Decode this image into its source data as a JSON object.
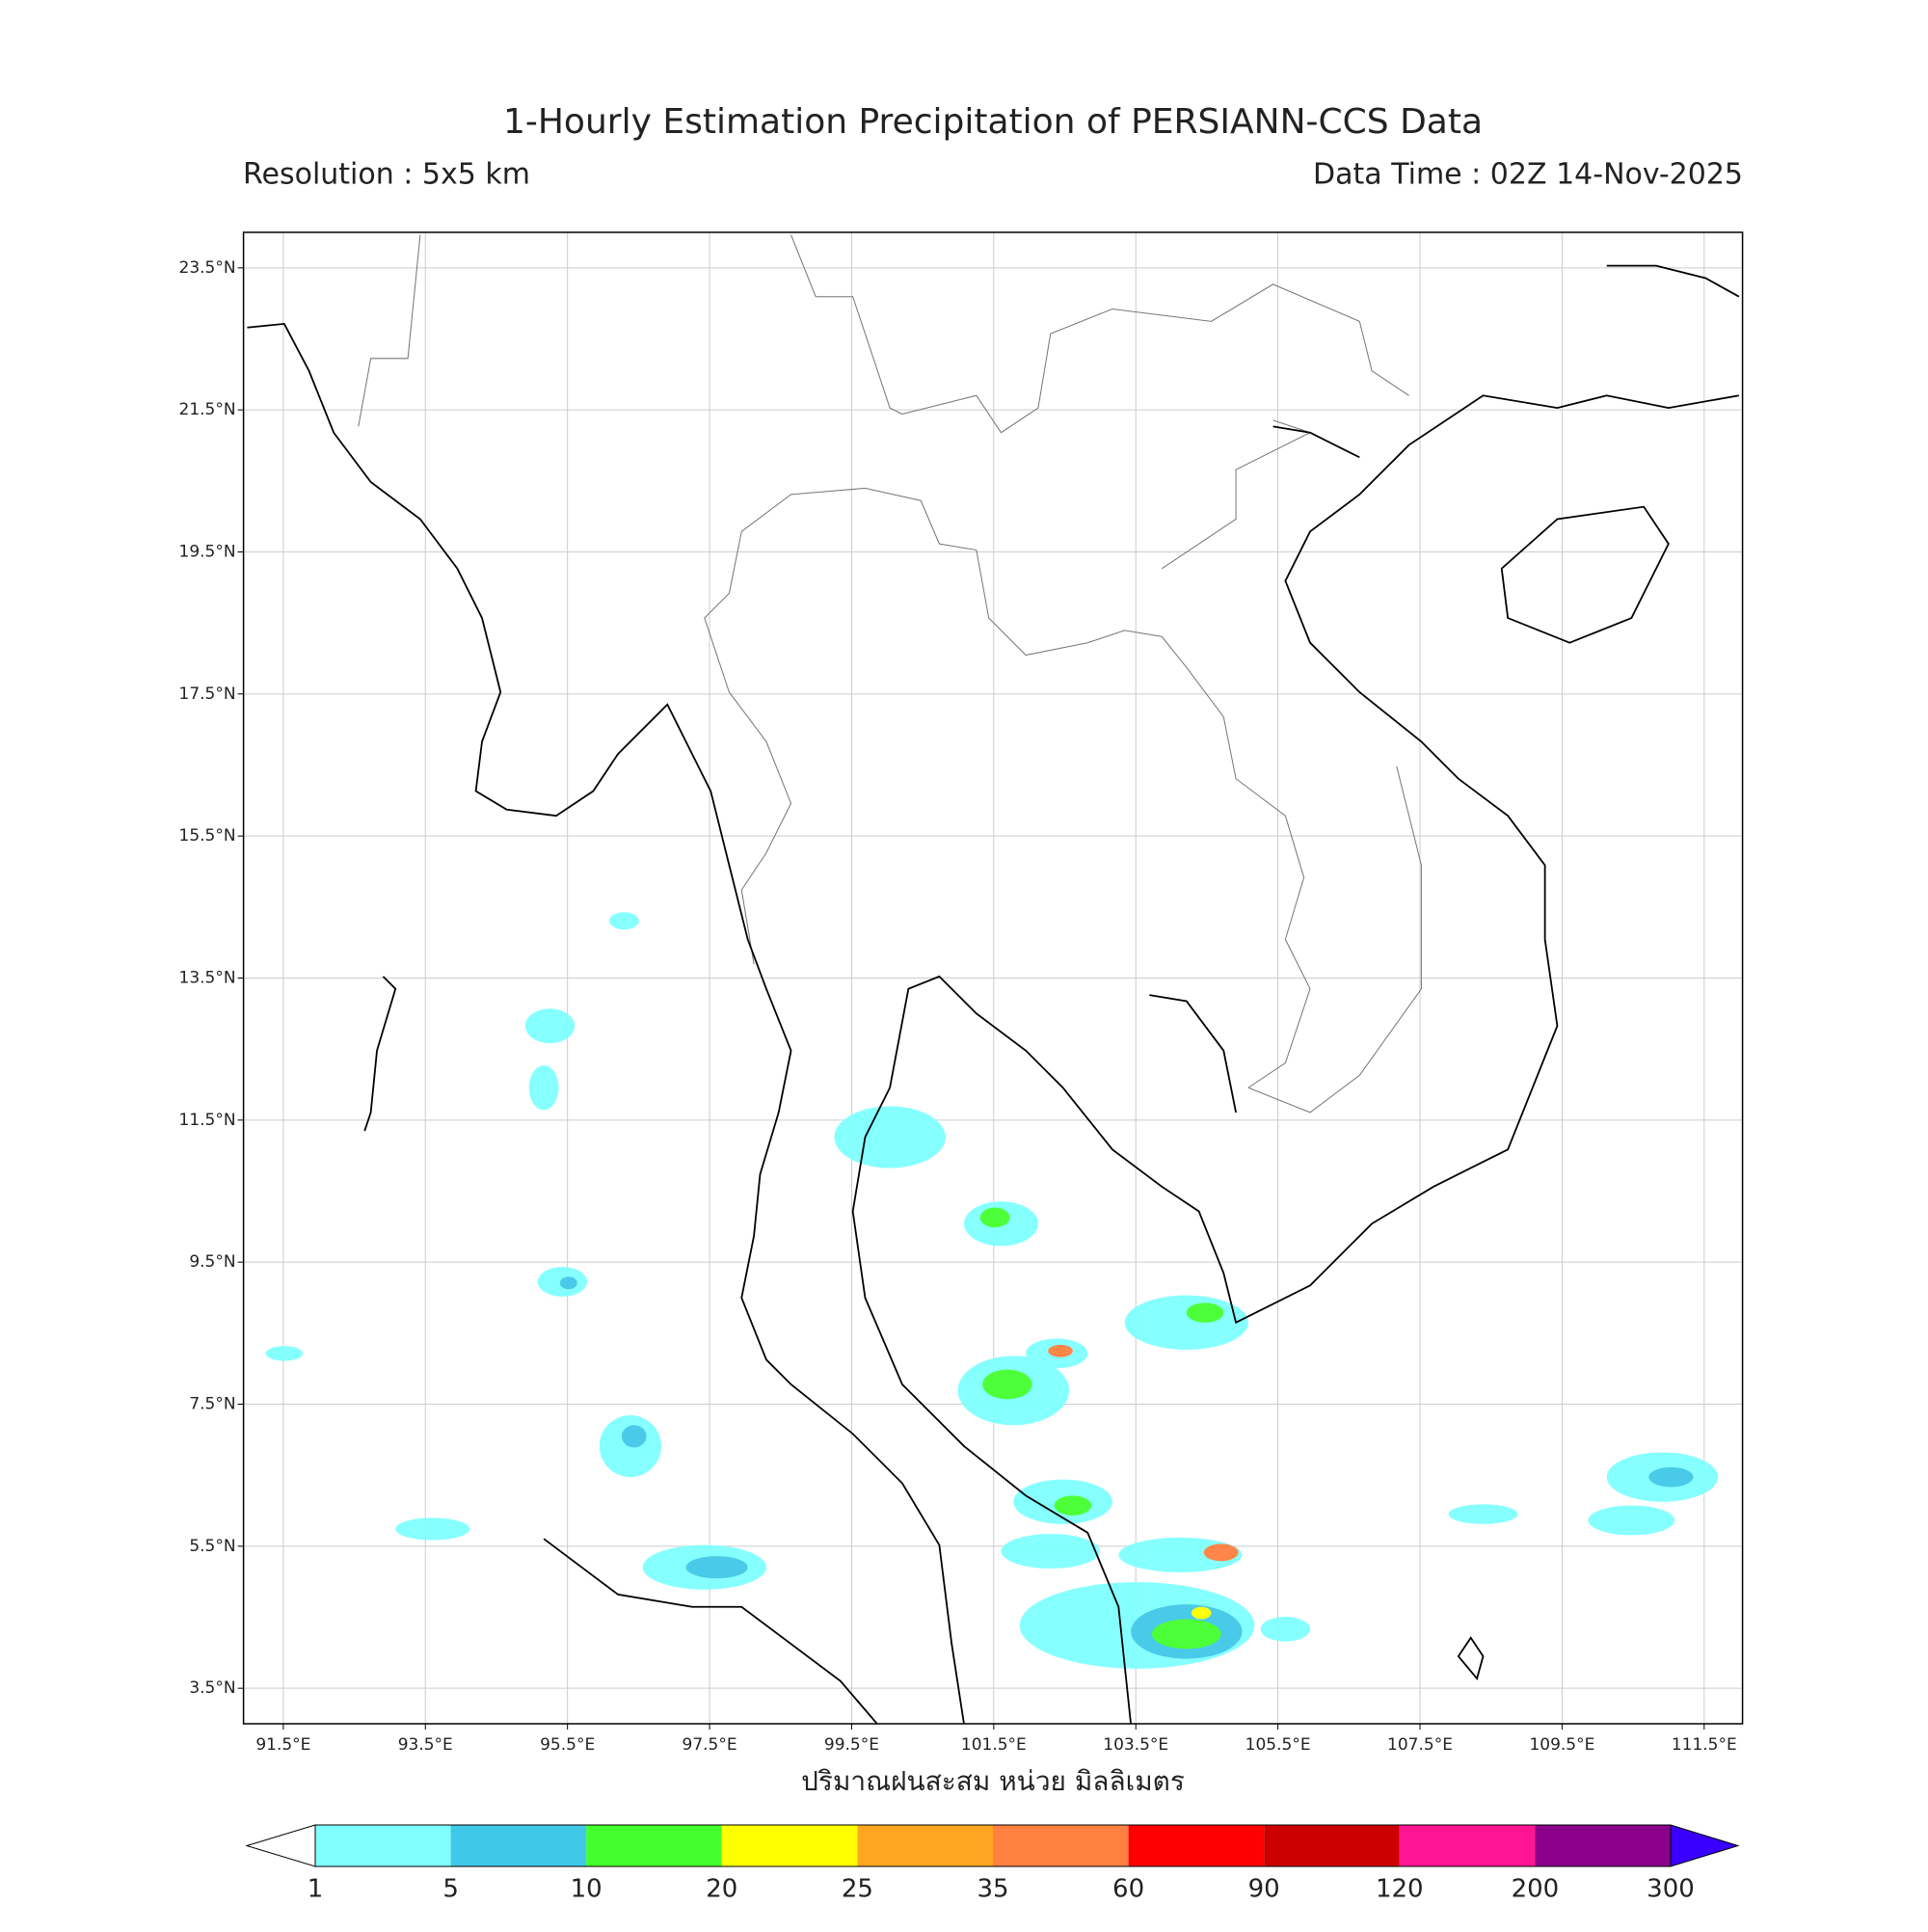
{
  "map": {
    "title": "1-Hourly Estimation Precipitation of PERSIANN-CCS Data",
    "resolution": "Resolution : 5x5 km",
    "data_time": "Data Time : 02Z 14-Nov-2025",
    "xlabel": "ปริมาณฝนสะสม หน่วย มิลลิเมตร",
    "xlim": [
      90.94,
      112.04
    ],
    "ylim": [
      3.0,
      24.0
    ],
    "grid": true,
    "xticks": [
      {
        "value": 91.5,
        "label": "91.5°E"
      },
      {
        "value": 93.5,
        "label": "93.5°E"
      },
      {
        "value": 95.5,
        "label": "95.5°E"
      },
      {
        "value": 97.5,
        "label": "97.5°E"
      },
      {
        "value": 99.5,
        "label": "99.5°E"
      },
      {
        "value": 101.5,
        "label": "101.5°E"
      },
      {
        "value": 103.5,
        "label": "103.5°E"
      },
      {
        "value": 105.5,
        "label": "105.5°E"
      },
      {
        "value": 107.5,
        "label": "107.5°E"
      },
      {
        "value": 109.5,
        "label": "109.5°E"
      },
      {
        "value": 111.5,
        "label": "111.5°E"
      }
    ],
    "yticks": [
      {
        "value": 3.5,
        "label": "3.5°N"
      },
      {
        "value": 5.5,
        "label": "5.5°N"
      },
      {
        "value": 7.5,
        "label": "7.5°N"
      },
      {
        "value": 9.5,
        "label": "9.5°N"
      },
      {
        "value": 11.5,
        "label": "11.5°N"
      },
      {
        "value": 13.5,
        "label": "13.5°N"
      },
      {
        "value": 15.5,
        "label": "15.5°N"
      },
      {
        "value": 17.5,
        "label": "17.5°N"
      },
      {
        "value": 19.5,
        "label": "19.5°N"
      },
      {
        "value": 21.5,
        "label": "21.5°N"
      },
      {
        "value": 23.5,
        "label": "23.5°N"
      }
    ],
    "colorbar": {
      "levels": [
        1,
        5,
        10,
        20,
        25,
        35,
        60,
        90,
        120,
        200,
        300
      ],
      "colors": [
        "#80ffff",
        "#40c8e8",
        "#44ff2e",
        "#ffff00",
        "#ffa620",
        "#ff8040",
        "#ff0000",
        "#cc0000",
        "#ff1493",
        "#8b008b"
      ],
      "under_color": "#ffffff",
      "over_color": "#3a00ff"
    }
  }
}
